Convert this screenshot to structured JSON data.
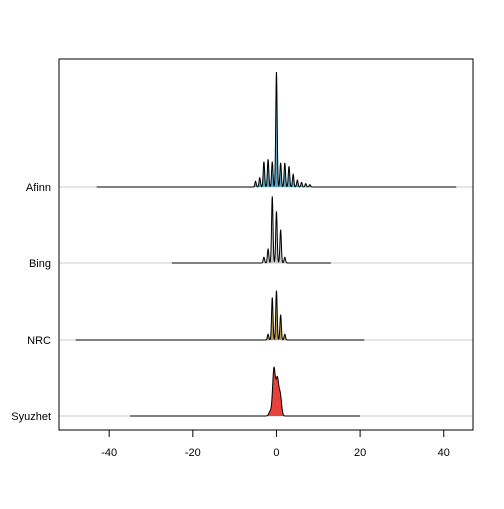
{
  "chart_data": {
    "type": "ridgeline",
    "title": "",
    "xlabel": "",
    "ylabel": "",
    "xlim": [
      -52,
      47
    ],
    "x_ticks": [
      -40,
      -20,
      0,
      20,
      40
    ],
    "grid": "horizontal baselines only",
    "series": [
      {
        "name": "Afinn",
        "color": "#5aa9c4",
        "range": [
          -43,
          43
        ],
        "peaks": [
          {
            "x": -5,
            "h": 0.05
          },
          {
            "x": -4,
            "h": 0.08
          },
          {
            "x": -3,
            "h": 0.22
          },
          {
            "x": -2,
            "h": 0.24
          },
          {
            "x": -1,
            "h": 0.22
          },
          {
            "x": 0,
            "h": 1.0
          },
          {
            "x": 1,
            "h": 0.21
          },
          {
            "x": 2,
            "h": 0.21
          },
          {
            "x": 3,
            "h": 0.18
          },
          {
            "x": 4,
            "h": 0.11
          },
          {
            "x": 5,
            "h": 0.06
          },
          {
            "x": 6,
            "h": 0.04
          },
          {
            "x": 7,
            "h": 0.03
          },
          {
            "x": 8,
            "h": 0.02
          }
        ]
      },
      {
        "name": "Bing",
        "color": "#c9c9c9",
        "range": [
          -25,
          13
        ],
        "peaks": [
          {
            "x": -3,
            "h": 0.05
          },
          {
            "x": -2,
            "h": 0.12
          },
          {
            "x": -1,
            "h": 0.58
          },
          {
            "x": 0,
            "h": 0.45
          },
          {
            "x": 1,
            "h": 0.29
          },
          {
            "x": 2,
            "h": 0.05
          }
        ]
      },
      {
        "name": "NRC",
        "color": "#b89a4a",
        "range": [
          -48,
          21
        ],
        "peaks": [
          {
            "x": -2,
            "h": 0.05
          },
          {
            "x": -1,
            "h": 0.37
          },
          {
            "x": 0,
            "h": 0.43
          },
          {
            "x": 1,
            "h": 0.22
          },
          {
            "x": 2,
            "h": 0.05
          }
        ]
      },
      {
        "name": "Syuzhet",
        "color": "#e8413c",
        "range": [
          -35,
          20
        ],
        "peaks": [
          {
            "x": -1.5,
            "h": 0.04
          },
          {
            "x": -0.6,
            "h": 0.41
          },
          {
            "x": 0.2,
            "h": 0.31
          },
          {
            "x": 0.9,
            "h": 0.18
          }
        ]
      }
    ]
  }
}
